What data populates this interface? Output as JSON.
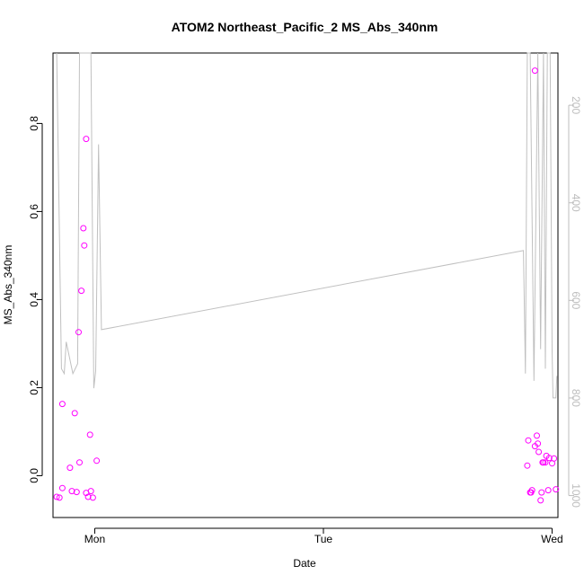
{
  "chart_data": {
    "type": "scatter",
    "title": "ATOM2 Northeast_Pacific_2 MS_Abs_340nm",
    "xlabel": "Date",
    "ylabel": "MS_Abs_340nm",
    "x_ticks": [
      "Mon",
      "Tue",
      "Wed"
    ],
    "y_ticks": [
      "0.0",
      "0.2",
      "0.4",
      "0.6",
      "0.8"
    ],
    "y_right_ticks": [
      "200",
      "400",
      "600",
      "800",
      "1000"
    ],
    "xlim": [
      "Sun 19:37",
      "Wed 00:37"
    ],
    "ylim": [
      -0.095,
      0.96
    ],
    "y_right_lim": [
      1045,
      93
    ],
    "y_right_reversed": true,
    "grid": false,
    "series": [
      {
        "marker": "open-circle",
        "color": "#ff00ff",
        "points": [
          {
            "x": "Sun 20:00",
            "y": -0.048
          },
          {
            "x": "Sun 20:18",
            "y": -0.05
          },
          {
            "x": "Sun 20:36",
            "y": 0.163
          },
          {
            "x": "Sun 20:36",
            "y": -0.028
          },
          {
            "x": "Sun 21:24",
            "y": 0.018
          },
          {
            "x": "Sun 21:36",
            "y": -0.035
          },
          {
            "x": "Sun 21:54",
            "y": 0.142
          },
          {
            "x": "Sun 22:06",
            "y": -0.037
          },
          {
            "x": "Sun 22:18",
            "y": 0.326
          },
          {
            "x": "Sun 22:24",
            "y": 0.03
          },
          {
            "x": "Sun 22:36",
            "y": 0.42
          },
          {
            "x": "Sun 22:48",
            "y": 0.562
          },
          {
            "x": "Sun 22:54",
            "y": 0.523
          },
          {
            "x": "Sun 23:06",
            "y": 0.765
          },
          {
            "x": "Sun 23:06",
            "y": -0.039
          },
          {
            "x": "Sun 23:18",
            "y": -0.048
          },
          {
            "x": "Sun 23:30",
            "y": 0.093
          },
          {
            "x": "Sun 23:36",
            "y": -0.035
          },
          {
            "x": "Sun 23:48",
            "y": -0.05
          },
          {
            "x": "Mon 00:12",
            "y": 0.034
          },
          {
            "x": "Tue 21:24",
            "y": 0.023
          },
          {
            "x": "Tue 21:30",
            "y": 0.08
          },
          {
            "x": "Tue 21:42",
            "y": -0.038
          },
          {
            "x": "Tue 21:48",
            "y": -0.038
          },
          {
            "x": "Tue 21:54",
            "y": -0.033
          },
          {
            "x": "Tue 22:12",
            "y": 0.92
          },
          {
            "x": "Tue 22:12",
            "y": 0.067
          },
          {
            "x": "Tue 22:24",
            "y": 0.091
          },
          {
            "x": "Tue 22:30",
            "y": 0.073
          },
          {
            "x": "Tue 22:36",
            "y": 0.054
          },
          {
            "x": "Tue 22:48",
            "y": -0.056
          },
          {
            "x": "Tue 22:54",
            "y": -0.038
          },
          {
            "x": "Tue 23:00",
            "y": 0.03
          },
          {
            "x": "Tue 23:06",
            "y": 0.03
          },
          {
            "x": "Tue 23:18",
            "y": 0.03
          },
          {
            "x": "Tue 23:24",
            "y": 0.045
          },
          {
            "x": "Tue 23:36",
            "y": -0.033
          },
          {
            "x": "Tue 23:42",
            "y": 0.04
          },
          {
            "x": "Tue 24:00",
            "y": 0.028
          },
          {
            "x": "Wed 00:12",
            "y": 0.039
          },
          {
            "x": "Wed 00:24",
            "y": -0.031
          }
        ]
      },
      {
        "line": true,
        "axis": "right",
        "color": "#c0c0c0",
        "points": [
          {
            "x": "Sun 20:00",
            "y": 93
          },
          {
            "x": "Sun 20:30",
            "y": 740
          },
          {
            "x": "Sun 20:48",
            "y": 750
          },
          {
            "x": "Sun 21:00",
            "y": 685
          },
          {
            "x": "Sun 21:42",
            "y": 750
          },
          {
            "x": "Sun 22:12",
            "y": 730
          },
          {
            "x": "Sun 22:24",
            "y": 93
          },
          {
            "x": "Sun 22:48",
            "y": 93
          },
          {
            "x": "Sun 23:00",
            "y": 93
          },
          {
            "x": "Sun 23:12",
            "y": 93
          },
          {
            "x": "Sun 23:36",
            "y": 93
          },
          {
            "x": "Sun 23:54",
            "y": 780
          },
          {
            "x": "Mon 00:06",
            "y": 745
          },
          {
            "x": "Mon 00:24",
            "y": 280
          },
          {
            "x": "Mon 00:42",
            "y": 660
          },
          {
            "x": "Tue 21:00",
            "y": 498
          },
          {
            "x": "Tue 21:12",
            "y": 750
          },
          {
            "x": "Tue 21:24",
            "y": 93
          },
          {
            "x": "Tue 21:42",
            "y": 93
          },
          {
            "x": "Tue 22:06",
            "y": 765
          },
          {
            "x": "Tue 22:30",
            "y": 93
          },
          {
            "x": "Tue 22:48",
            "y": 700
          },
          {
            "x": "Tue 23:06",
            "y": 93
          },
          {
            "x": "Tue 23:18",
            "y": 740
          },
          {
            "x": "Tue 23:30",
            "y": 93
          },
          {
            "x": "Tue 23:48",
            "y": 93
          },
          {
            "x": "Tue 24:00",
            "y": 705
          },
          {
            "x": "Wed 00:06",
            "y": 800
          },
          {
            "x": "Wed 00:24",
            "y": 800
          },
          {
            "x": "Wed 00:30",
            "y": 755
          }
        ]
      }
    ]
  }
}
